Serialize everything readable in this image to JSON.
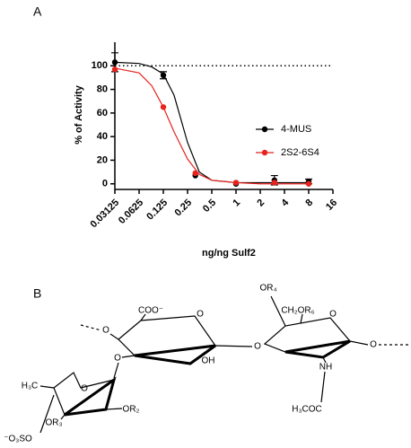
{
  "chart_data": {
    "type": "line",
    "panel_label": "A",
    "x_label": "ng/ng Sulf2",
    "y_label": "% of Activity",
    "x": [
      0.03125,
      0.125,
      0.3125,
      1,
      3,
      8
    ],
    "series": [
      {
        "name": "4-MUS",
        "color": "#000000",
        "values": [
          103,
          92,
          7,
          0,
          3,
          2
        ],
        "errors": [
          8,
          3,
          null,
          null,
          4,
          2
        ],
        "fit": {
          "x": [
            0.03125,
            0.0625,
            0.09,
            0.125,
            0.17,
            0.25,
            0.35,
            0.5,
            1,
            2,
            4,
            8
          ],
          "y": [
            103,
            102,
            99,
            93,
            75,
            35,
            10,
            3,
            1,
            1,
            1,
            1
          ]
        }
      },
      {
        "name": "2S2-6S4",
        "color": "#e8231e",
        "values": [
          97,
          65,
          9,
          1,
          1,
          0
        ],
        "errors": [
          null,
          null,
          null,
          null,
          null,
          null
        ],
        "fit": {
          "x": [
            0.03125,
            0.0625,
            0.09,
            0.125,
            0.17,
            0.25,
            0.35,
            0.5,
            1,
            2,
            4,
            8
          ],
          "y": [
            98,
            94,
            83,
            65,
            44,
            21,
            8,
            3,
            1,
            0,
            0,
            0
          ]
        }
      }
    ],
    "reference_line": 100,
    "log_x": true,
    "log_base": 2,
    "xlim": [
      0.03125,
      16
    ],
    "xticks": [
      0.03125,
      0.0625,
      0.125,
      0.25,
      0.5,
      1,
      2,
      4,
      8,
      16
    ],
    "ylim": [
      -4,
      120
    ],
    "yticks": [
      0,
      20,
      40,
      60,
      80,
      100
    ],
    "legend": "right"
  },
  "panel_b": {
    "label": "B",
    "atoms": [
      "O",
      "COO⁻",
      "O",
      "OH",
      "O",
      "OR₄",
      "CH₂OR₆",
      "O",
      "NH",
      "H₃COC",
      "O",
      "O",
      "H₃C",
      "O",
      "OR₂",
      "OR₃",
      "⁻O₃SO"
    ]
  }
}
